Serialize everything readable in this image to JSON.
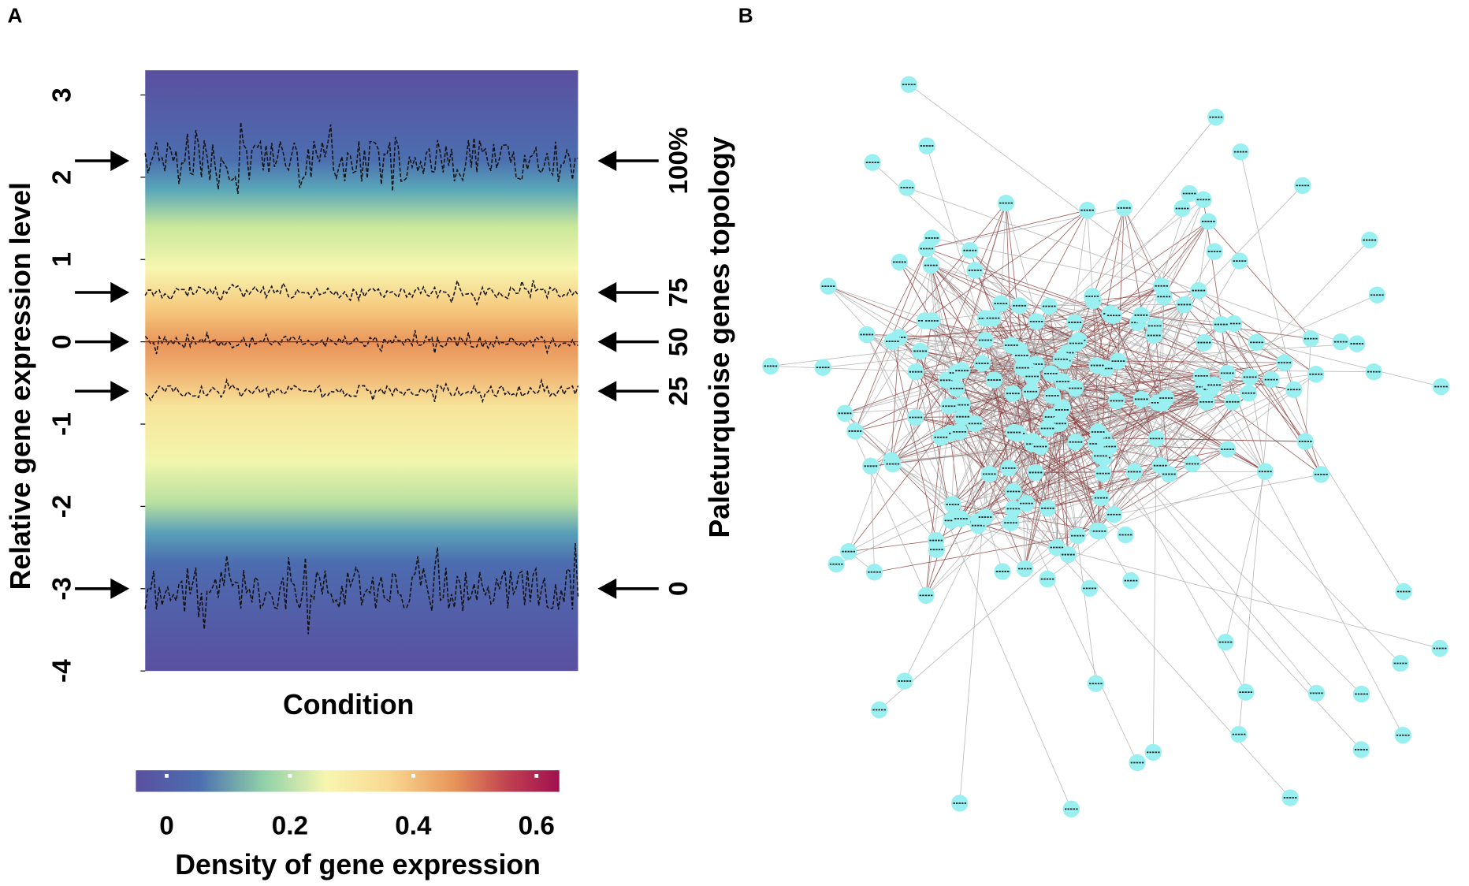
{
  "panels": {
    "a": "A",
    "b": "B"
  },
  "chart_data": [
    {
      "type": "density",
      "xlabel": "Condition",
      "ylabel": "Relative gene expression level",
      "ylim": [
        -4,
        3.3
      ],
      "yticks": [
        -4,
        -3,
        -2,
        -1,
        0,
        1,
        2,
        3
      ],
      "y2label": "Paleturquoise genes topology",
      "y2ticks": [
        0,
        25,
        50,
        75,
        {
          "value": 100,
          "label": "100%"
        }
      ],
      "y2tick_levels": [
        -3,
        -0.6,
        0,
        0.6,
        2.2
      ],
      "colorbar": {
        "title": "Density of gene expression",
        "lim": [
          -0.05,
          0.637
        ],
        "ticks": [
          0,
          0.2,
          0.4,
          0.6
        ]
      }
    }
  ]
}
